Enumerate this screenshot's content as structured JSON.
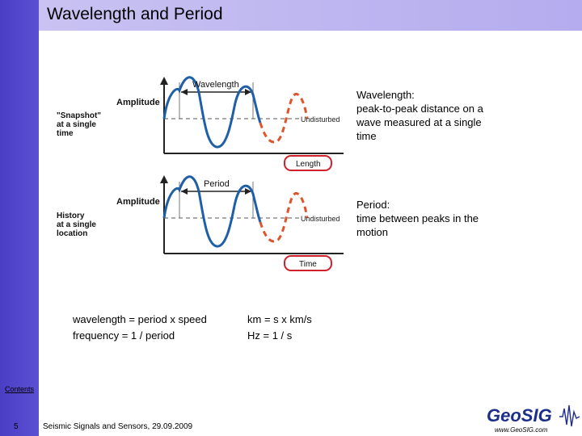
{
  "slide": {
    "title": "Wavelength and Period"
  },
  "diagram": {
    "snapshot": {
      "top_label": "Wavelength",
      "axis_label": "Amplitude",
      "side_label_lines": [
        "\"Snapshot\"",
        "at a single",
        "time"
      ],
      "undisturbed_label": "Undisturbed",
      "bottom_label": "Length"
    },
    "history": {
      "top_label": "Period",
      "axis_label": "Amplitude",
      "side_label_lines": [
        "History",
        "at a single",
        "location"
      ],
      "undisturbed_label": "Undisturbed",
      "bottom_label": "Time"
    },
    "colors": {
      "wave_solid": "#1f5fa8",
      "wave_dashed": "#e0542a",
      "axis": "#222222",
      "label_box": "#d0202a"
    }
  },
  "descriptions": {
    "wavelength": [
      "Wavelength:",
      "peak-to-peak distance on a",
      "wave measured at a single",
      "time"
    ],
    "period": [
      "Period:",
      "time between peaks in the",
      "motion"
    ]
  },
  "formulas": {
    "left": [
      "wavelength = period x speed",
      "frequency = 1 / period"
    ],
    "right": [
      "km = s x km/s",
      "Hz = 1 / s"
    ]
  },
  "footer": {
    "contents_link": "Contents",
    "page_number": "5",
    "text": "Seismic Signals and Sensors, 29.09.2009",
    "logo": "GeoSIG",
    "url": "www.GeoSIG.com"
  },
  "theme": {
    "left_bar": "#4a3fc4",
    "title_bar": "#c0b8f0"
  }
}
